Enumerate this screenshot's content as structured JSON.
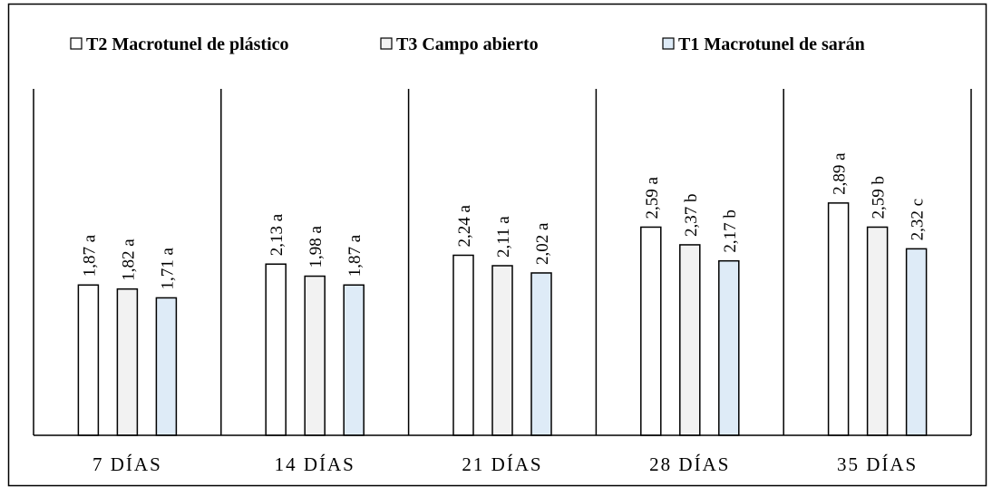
{
  "chart_data": {
    "type": "bar",
    "categories": [
      "7 DÍAS",
      "14 DÍAS",
      "21 DÍAS",
      "28 DÍAS",
      "35 DÍAS"
    ],
    "series": [
      {
        "name": "T2 Macrotunel de plástico",
        "values": [
          1.87,
          2.13,
          2.24,
          2.59,
          2.89
        ],
        "labels": [
          "1,87 a",
          "2,13 a",
          "2,24 a",
          "2,59 a",
          "2,89 a"
        ],
        "color": "#ffffff"
      },
      {
        "name": "T3 Campo abierto",
        "values": [
          1.82,
          1.98,
          2.11,
          2.37,
          2.59
        ],
        "labels": [
          "1,82 a",
          "1,98 a",
          "2,11 a",
          "2,37 b",
          "2,59 b"
        ],
        "color": "#f2f2f2"
      },
      {
        "name": "T1 Macrotunel de sarán",
        "values": [
          1.71,
          1.87,
          2.02,
          2.17,
          2.32
        ],
        "labels": [
          "1,71 a",
          "1,87 a",
          "2,02 a",
          "2,17 b",
          "2,32 c"
        ],
        "color": "#deebf7"
      }
    ],
    "ylim": [
      0,
      4.31
    ],
    "grid": false,
    "legend_position": "top",
    "bar_outline_color": "#000000"
  }
}
